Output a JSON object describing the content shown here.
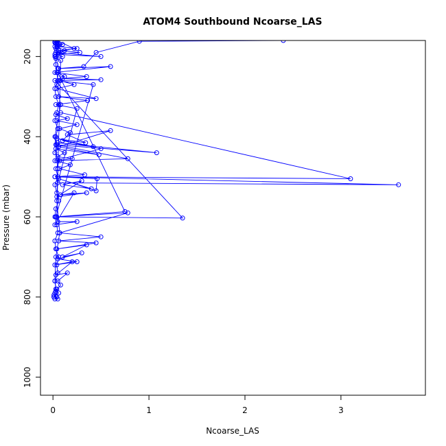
{
  "chart_data": {
    "type": "line",
    "title": "ATOM4 Southbound Ncoarse_LAS",
    "xlabel": "Ncoarse_LAS",
    "ylabel": "Pressure (mbar)",
    "xlim": [
      -0.13,
      3.88
    ],
    "ylim": [
      1045,
      160
    ],
    "y_reversed": true,
    "x_ticks": [
      0,
      1,
      2,
      3
    ],
    "y_ticks": [
      200,
      400,
      600,
      800,
      1000
    ],
    "grid": false,
    "marker": "open-circle",
    "color": "#0000ff",
    "series": [
      {
        "x": [
          0.02,
          0.04,
          0.01,
          0.06,
          0.03,
          0.08,
          0.05,
          0.15,
          0.03,
          0.2,
          0.02,
          0.25,
          0.05,
          0.3,
          0.1,
          0.35,
          0.04,
          0.45,
          0.06,
          0.5,
          0.07,
          0.78,
          0.03,
          0.05,
          0.25,
          0.02,
          0.22,
          0.08,
          0.35,
          0.04,
          0.3,
          0.1,
          0.4,
          0.06,
          0.45,
          0.46,
          0.02,
          0.33,
          0.07,
          0.18,
          0.04,
          0.2,
          0.05,
          0.12,
          0.03,
          0.48,
          0.06,
          0.6,
          0.15,
          0.34,
          0.04,
          0.42,
          0.05,
          1.08,
          0.03,
          0.78,
          0.02,
          0.5,
          0.1,
          0.18,
          0.07,
          0.25,
          0.04,
          0.15,
          0.03,
          0.08,
          3.1,
          0.02,
          3.6,
          0.05,
          0.25,
          0.03,
          0.36,
          0.06,
          0.45,
          0.04,
          0.22,
          0.07,
          0.12,
          0.05,
          0.75,
          0.03,
          0.42,
          0.02,
          1.35,
          0.04,
          0.08,
          0.03,
          0.1,
          0.02,
          0.28,
          0.06,
          0.25,
          0.05,
          0.1,
          0.02,
          0.04,
          0.22,
          0.03,
          0.5,
          0.05,
          0.12,
          0.04,
          0.07,
          0.02,
          0.05,
          0.03,
          0.06,
          0.04,
          0.08,
          0.02,
          0.05,
          0.04,
          0.07,
          0.03,
          0.02,
          0.05,
          0.01,
          0.02,
          0.04
        ],
        "y": [
          805,
          800,
          795,
          790,
          785,
          770,
          760,
          740,
          745,
          712,
          720,
          712,
          705,
          690,
          700,
          670,
          680,
          665,
          660,
          650,
          640,
          590,
          600,
          612,
          612,
          620,
          540,
          545,
          540,
          550,
          510,
          520,
          530,
          505,
          535,
          505,
          500,
          495,
          480,
          470,
          460,
          455,
          450,
          440,
          430,
          445,
          425,
          385,
          395,
          415,
          405,
          425,
          415,
          440,
          420,
          455,
          460,
          430,
          410,
          390,
          380,
          370,
          360,
          355,
          345,
          340,
          505,
          500,
          520,
          515,
          330,
          320,
          310,
          300,
          305,
          280,
          270,
          260,
          250,
          240,
          587,
          600,
          270,
          260,
          603,
          600,
          210,
          205,
          200,
          195,
          190,
          185,
          180,
          175,
          170,
          165,
          160,
          180,
          190,
          200,
          195,
          185,
          175,
          170,
          165,
          160,
          200,
          230,
          270,
          320,
          400,
          480,
          560,
          640,
          700,
          760,
          805,
          800,
          790,
          780
        ]
      },
      {
        "x": [
          0.01,
          0.03,
          0.02,
          0.05,
          0.04,
          0.06,
          0.03,
          0.02,
          0.05,
          0.04,
          0.02,
          0.03,
          0.06,
          0.04,
          0.02,
          0.05,
          0.03,
          0.07,
          0.02,
          0.04,
          0.03,
          0.05,
          0.02,
          0.04,
          0.06,
          0.03,
          0.02,
          0.05,
          0.04,
          0.03,
          0.02,
          0.06,
          0.04,
          0.03,
          0.02,
          0.05,
          0.03,
          0.04,
          0.02,
          0.03,
          2.4,
          0.9,
          0.45,
          0.32,
          0.05,
          0.6,
          0.02,
          0.35,
          0.1,
          0.5,
          0.08
        ],
        "y": [
          800,
          780,
          760,
          740,
          720,
          700,
          680,
          660,
          640,
          620,
          600,
          580,
          560,
          540,
          520,
          500,
          480,
          460,
          440,
          420,
          400,
          380,
          360,
          340,
          320,
          300,
          280,
          260,
          240,
          220,
          200,
          190,
          185,
          180,
          175,
          170,
          168,
          165,
          162,
          160,
          160,
          162,
          190,
          225,
          230,
          225,
          240,
          250,
          255,
          258,
          260
        ]
      }
    ]
  }
}
